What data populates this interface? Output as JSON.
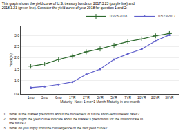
{
  "chart_data": {
    "type": "line",
    "title": "This graph shows the yield curve of U.S. treasury bonds on 2017.3.23 (purple line) and",
    "subtitle": "2018.3.23 (green line). Consider the yield curve of year 2018 for question 1 and 2:",
    "xlabel": "Maturity  Note: 1-mo=1 Month Maturity in one month",
    "ylabel": "Yield (%)",
    "categories": [
      "1mo",
      "3mo",
      "6mo",
      "1YR",
      "2YR",
      "3YR",
      "5YR",
      "7YR",
      "10YR",
      "20YR",
      "30YR"
    ],
    "series": [
      {
        "name": "03/23/2018",
        "color": "#2d6a2d",
        "marker": "plus",
        "values": [
          1.63,
          1.73,
          1.93,
          2.08,
          2.27,
          2.4,
          2.56,
          2.72,
          2.84,
          2.98,
          3.08
        ]
      },
      {
        "name": "03/23/2017",
        "color": "#6060cc",
        "marker": "circle",
        "values": [
          0.68,
          0.73,
          0.82,
          0.93,
          1.27,
          1.5,
          1.93,
          2.18,
          2.39,
          2.75,
          3.02
        ]
      }
    ],
    "ylim": [
      0.4,
      3.4
    ],
    "yticks": [
      0.4,
      {
        "value": 1.0,
        "label": "1.0"
      },
      1.5,
      {
        "value": 2.0,
        "label": "2.0"
      },
      2.5,
      {
        "value": 3.0,
        "label": "3.0"
      }
    ],
    "grid": true,
    "legend": "upper right",
    "annotations": [
      "1.   What is the market prediction about the movement of future short-term interest rates?",
      "2.   What might the yield curve indicate about he market’s predictions for the inflation rate in",
      "      the future?",
      "3.   What do you imply from the convergence of the two yield curve?"
    ]
  }
}
